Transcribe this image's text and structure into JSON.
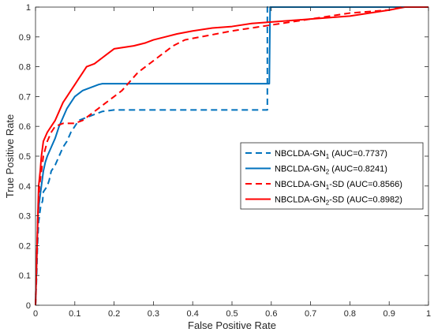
{
  "chart_data": {
    "type": "line",
    "title": "",
    "xlabel": "False Positive Rate",
    "ylabel": "True Positive Rate",
    "xlim": [
      0,
      1
    ],
    "ylim": [
      0,
      1
    ],
    "x_ticks": [
      "0",
      "0.1",
      "0.2",
      "0.3",
      "0.4",
      "0.5",
      "0.6",
      "0.7",
      "0.8",
      "0.9",
      "1"
    ],
    "y_ticks": [
      "0",
      "0.1",
      "0.2",
      "0.3",
      "0.4",
      "0.5",
      "0.6",
      "0.7",
      "0.8",
      "0.9",
      "1"
    ],
    "grid": false,
    "legend_position": "center-right",
    "series": [
      {
        "label": {
          "base": "NBCLDA-GN",
          "sub": "1",
          "suffix": " (AUC=0.7737)"
        },
        "color": "#0072BD",
        "dash": "dashed",
        "points": [
          [
            0,
            0
          ],
          [
            0.003,
            0.1
          ],
          [
            0.005,
            0.2
          ],
          [
            0.008,
            0.28
          ],
          [
            0.01,
            0.3
          ],
          [
            0.013,
            0.33
          ],
          [
            0.018,
            0.35
          ],
          [
            0.02,
            0.38
          ],
          [
            0.03,
            0.4
          ],
          [
            0.035,
            0.42
          ],
          [
            0.04,
            0.45
          ],
          [
            0.05,
            0.47
          ],
          [
            0.06,
            0.5
          ],
          [
            0.07,
            0.53
          ],
          [
            0.08,
            0.55
          ],
          [
            0.09,
            0.58
          ],
          [
            0.1,
            0.6
          ],
          [
            0.11,
            0.62
          ],
          [
            0.13,
            0.63
          ],
          [
            0.15,
            0.64
          ],
          [
            0.17,
            0.65
          ],
          [
            0.2,
            0.655
          ],
          [
            0.3,
            0.655
          ],
          [
            0.4,
            0.655
          ],
          [
            0.5,
            0.655
          ],
          [
            0.59,
            0.655
          ],
          [
            0.59,
            1
          ],
          [
            1,
            1
          ]
        ]
      },
      {
        "label": {
          "base": "NBCLDA-GN",
          "sub": "2",
          "suffix": " (AUC=0.8241)"
        },
        "color": "#0072BD",
        "dash": "solid",
        "points": [
          [
            0,
            0
          ],
          [
            0.002,
            0.1
          ],
          [
            0.004,
            0.2
          ],
          [
            0.006,
            0.3
          ],
          [
            0.01,
            0.35
          ],
          [
            0.015,
            0.4
          ],
          [
            0.02,
            0.45
          ],
          [
            0.025,
            0.48
          ],
          [
            0.03,
            0.5
          ],
          [
            0.04,
            0.53
          ],
          [
            0.05,
            0.56
          ],
          [
            0.06,
            0.6
          ],
          [
            0.07,
            0.63
          ],
          [
            0.08,
            0.66
          ],
          [
            0.09,
            0.68
          ],
          [
            0.1,
            0.7
          ],
          [
            0.12,
            0.72
          ],
          [
            0.14,
            0.73
          ],
          [
            0.16,
            0.74
          ],
          [
            0.17,
            0.743
          ],
          [
            0.3,
            0.743
          ],
          [
            0.4,
            0.743
          ],
          [
            0.5,
            0.743
          ],
          [
            0.595,
            0.743
          ],
          [
            0.597,
            1
          ],
          [
            1,
            1
          ]
        ]
      },
      {
        "label": {
          "base": "NBCLDA-GN",
          "sub": "1",
          "suffix": "-SD (AUC=0.8566)"
        },
        "color": "#FF0000",
        "dash": "dashed",
        "points": [
          [
            0,
            0
          ],
          [
            0.002,
            0.1
          ],
          [
            0.004,
            0.2
          ],
          [
            0.006,
            0.3
          ],
          [
            0.01,
            0.4
          ],
          [
            0.015,
            0.45
          ],
          [
            0.02,
            0.5
          ],
          [
            0.03,
            0.55
          ],
          [
            0.04,
            0.58
          ],
          [
            0.05,
            0.6
          ],
          [
            0.07,
            0.61
          ],
          [
            0.1,
            0.61
          ],
          [
            0.12,
            0.62
          ],
          [
            0.14,
            0.64
          ],
          [
            0.16,
            0.66
          ],
          [
            0.18,
            0.68
          ],
          [
            0.2,
            0.7
          ],
          [
            0.22,
            0.72
          ],
          [
            0.24,
            0.75
          ],
          [
            0.26,
            0.78
          ],
          [
            0.28,
            0.8
          ],
          [
            0.3,
            0.82
          ],
          [
            0.32,
            0.84
          ],
          [
            0.35,
            0.87
          ],
          [
            0.38,
            0.89
          ],
          [
            0.42,
            0.9
          ],
          [
            0.46,
            0.91
          ],
          [
            0.5,
            0.92
          ],
          [
            0.55,
            0.93
          ],
          [
            0.6,
            0.94
          ],
          [
            0.7,
            0.96
          ],
          [
            0.8,
            0.98
          ],
          [
            0.9,
            0.99
          ],
          [
            0.93,
            1
          ],
          [
            1,
            1
          ]
        ]
      },
      {
        "label": {
          "base": "NBCLDA-GN",
          "sub": "2",
          "suffix": "-SD (AUC=0.8982)"
        },
        "color": "#FF0000",
        "dash": "solid",
        "points": [
          [
            0,
            0
          ],
          [
            0.002,
            0.1
          ],
          [
            0.004,
            0.2
          ],
          [
            0.006,
            0.3
          ],
          [
            0.008,
            0.4
          ],
          [
            0.012,
            0.45
          ],
          [
            0.015,
            0.5
          ],
          [
            0.02,
            0.55
          ],
          [
            0.03,
            0.58
          ],
          [
            0.04,
            0.6
          ],
          [
            0.05,
            0.62
          ],
          [
            0.06,
            0.65
          ],
          [
            0.07,
            0.68
          ],
          [
            0.08,
            0.7
          ],
          [
            0.09,
            0.72
          ],
          [
            0.1,
            0.74
          ],
          [
            0.11,
            0.76
          ],
          [
            0.12,
            0.78
          ],
          [
            0.13,
            0.8
          ],
          [
            0.15,
            0.81
          ],
          [
            0.17,
            0.83
          ],
          [
            0.18,
            0.84
          ],
          [
            0.2,
            0.86
          ],
          [
            0.25,
            0.87
          ],
          [
            0.28,
            0.88
          ],
          [
            0.3,
            0.89
          ],
          [
            0.33,
            0.9
          ],
          [
            0.36,
            0.91
          ],
          [
            0.4,
            0.92
          ],
          [
            0.45,
            0.93
          ],
          [
            0.5,
            0.935
          ],
          [
            0.55,
            0.945
          ],
          [
            0.6,
            0.95
          ],
          [
            0.7,
            0.96
          ],
          [
            0.8,
            0.97
          ],
          [
            0.9,
            0.99
          ],
          [
            0.94,
            1
          ],
          [
            1,
            1
          ]
        ]
      }
    ]
  }
}
